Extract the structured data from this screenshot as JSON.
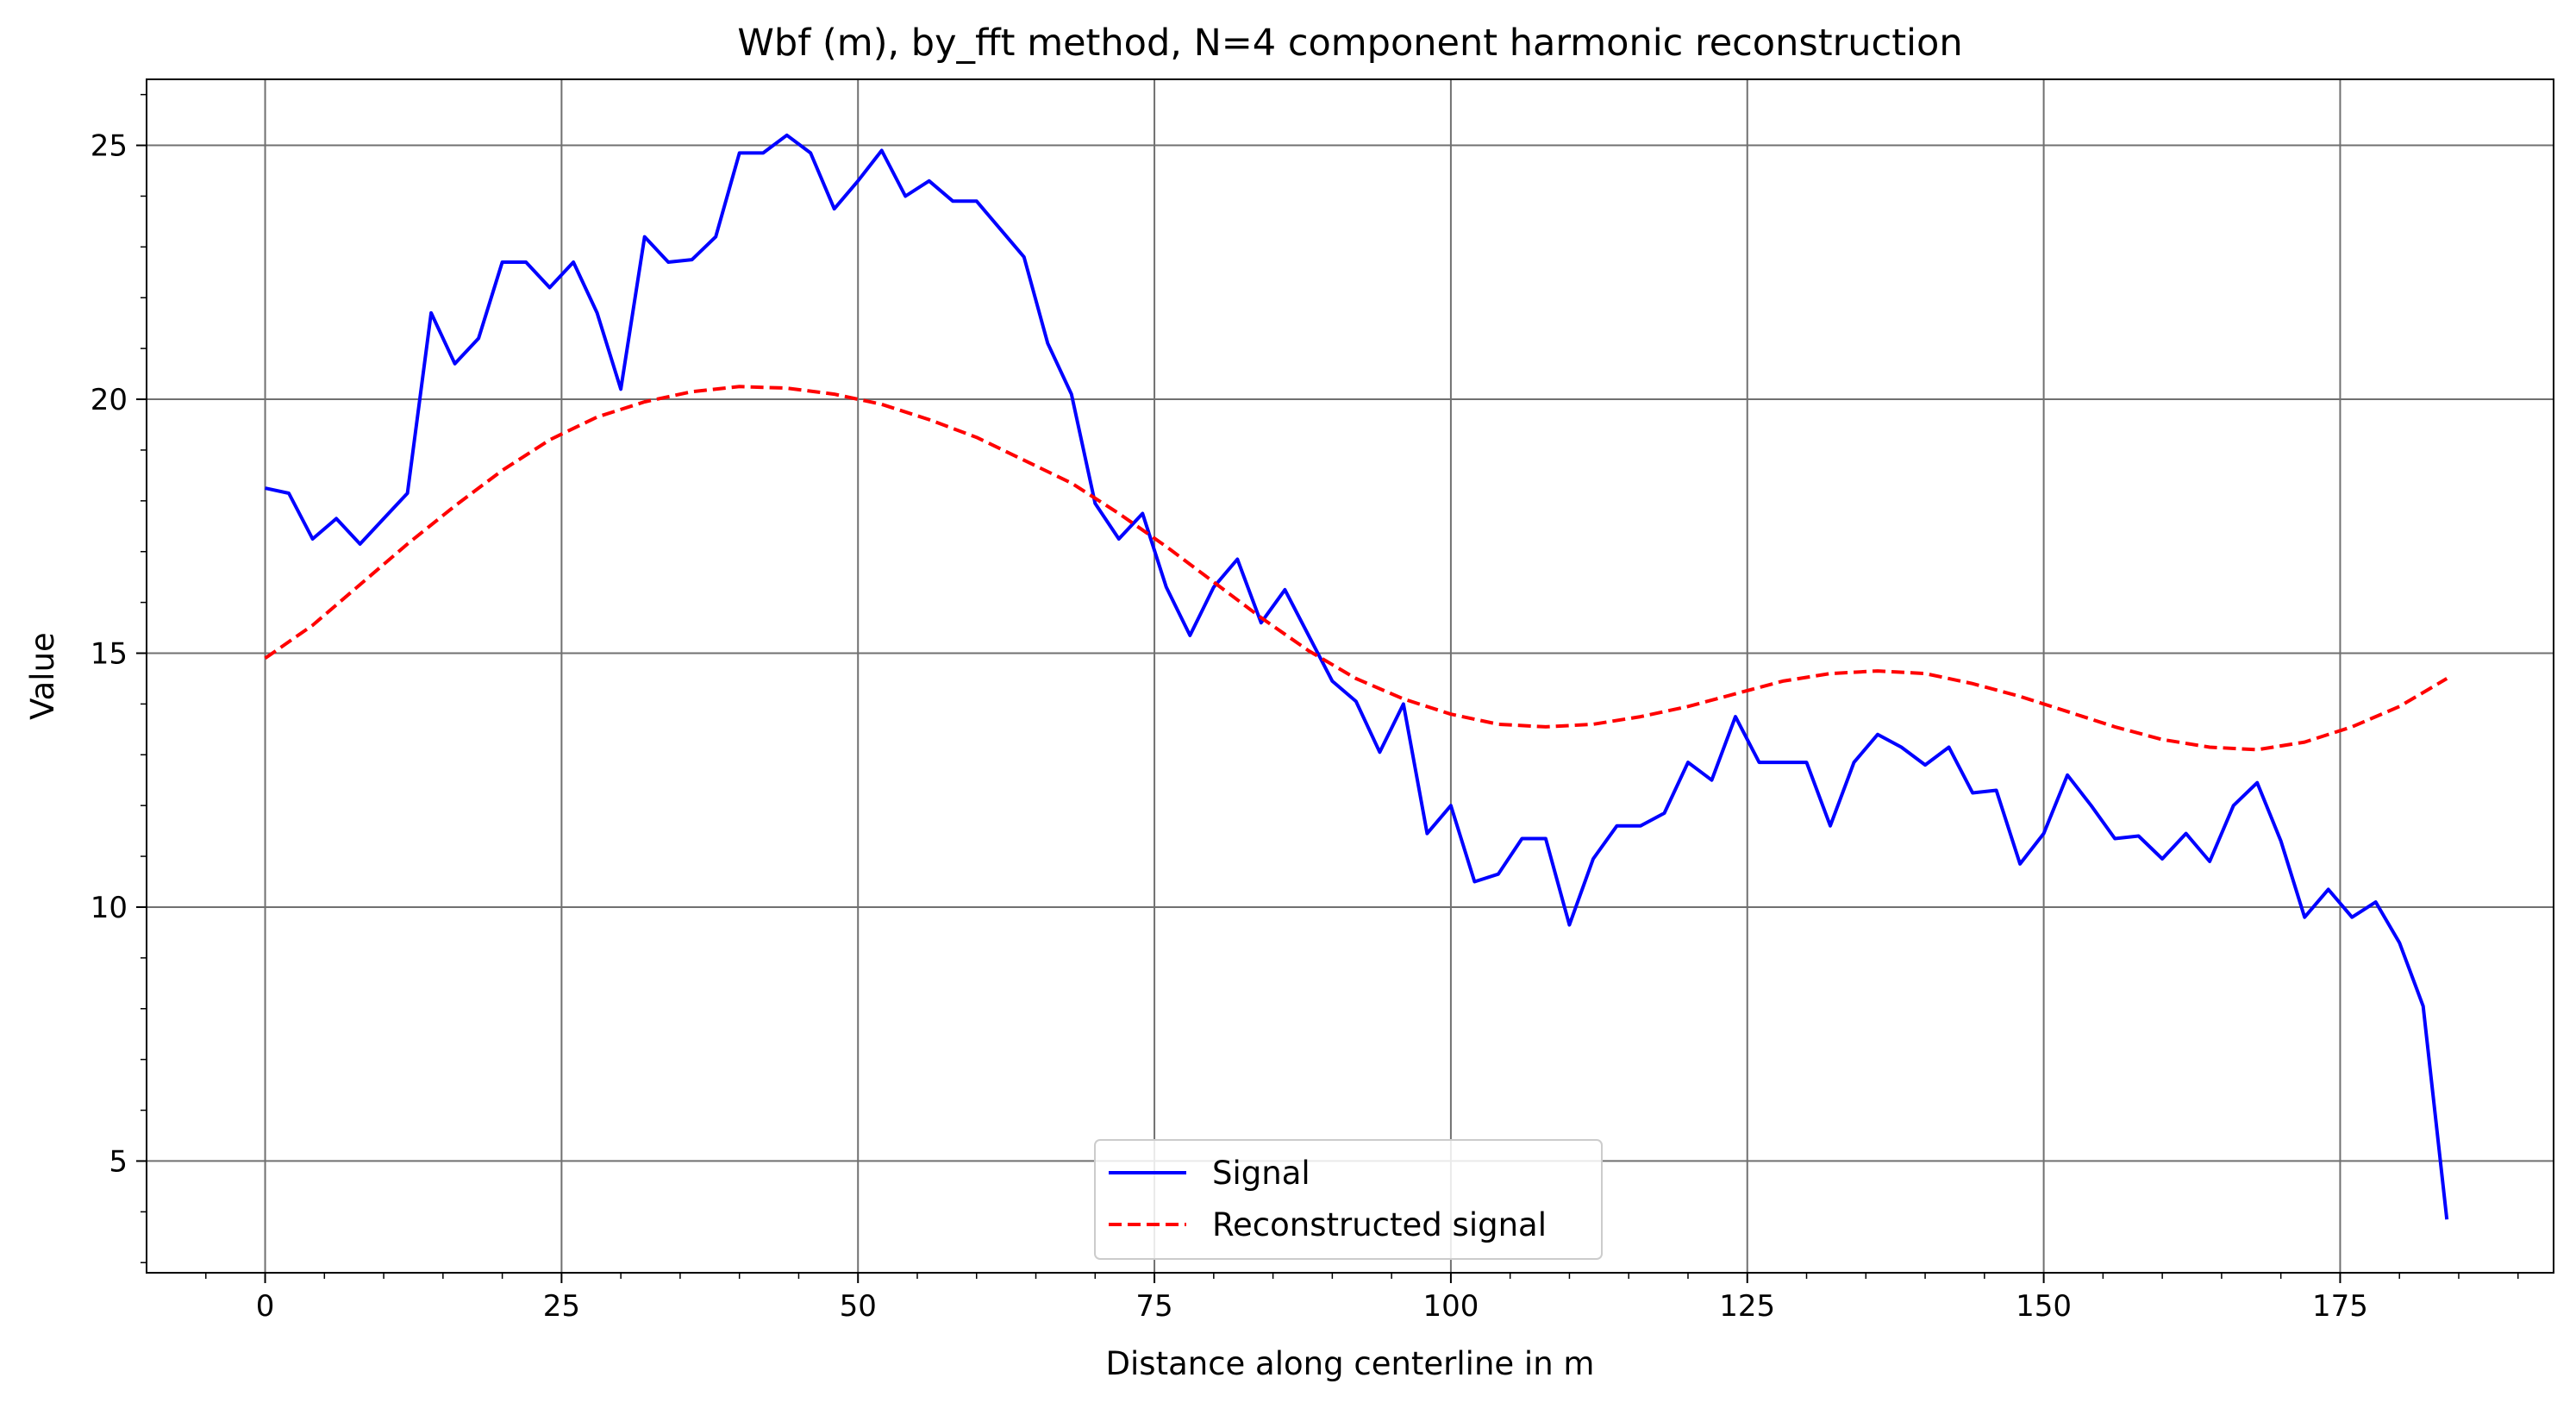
{
  "chart_data": {
    "type": "line",
    "title": "Wbf (m), by_fft method, N=4 component harmonic reconstruction",
    "xlabel": "Distance along centerline in m",
    "ylabel": "Value",
    "xlim": [
      -10,
      193
    ],
    "ylim": [
      2.8,
      26.3
    ],
    "xticks": [
      0,
      25,
      50,
      75,
      100,
      125,
      150,
      175
    ],
    "yticks": [
      5,
      10,
      15,
      20,
      25
    ],
    "grid": true,
    "legend_position": "bottom-center",
    "series": [
      {
        "name": "Signal",
        "color": "#0000ff",
        "style": "solid",
        "x": [
          0,
          2,
          4,
          6,
          8,
          10,
          12,
          14,
          16,
          18,
          20,
          22,
          24,
          26,
          28,
          30,
          32,
          34,
          36,
          38,
          40,
          42,
          44,
          46,
          48,
          50,
          52,
          54,
          56,
          58,
          60,
          62,
          64,
          66,
          68,
          70,
          72,
          74,
          76,
          78,
          80,
          82,
          84,
          86,
          88,
          90,
          92,
          94,
          96,
          98,
          100,
          102,
          104,
          106,
          108,
          110,
          112,
          114,
          116,
          118,
          120,
          122,
          124,
          126,
          128,
          130,
          132,
          134,
          136,
          138,
          140,
          142,
          144,
          146,
          148,
          150,
          152,
          154,
          156,
          158,
          160,
          162,
          164,
          166,
          168,
          170,
          172,
          174,
          176,
          178,
          180,
          182,
          184
        ],
        "y": [
          18.25,
          18.15,
          17.25,
          17.65,
          17.15,
          17.65,
          18.15,
          21.7,
          20.7,
          21.2,
          22.7,
          22.7,
          22.2,
          22.7,
          21.7,
          20.2,
          23.2,
          22.7,
          22.75,
          23.2,
          24.85,
          24.85,
          25.2,
          24.85,
          23.75,
          24.3,
          24.9,
          24.0,
          24.3,
          23.9,
          23.9,
          23.35,
          22.8,
          21.1,
          20.1,
          17.95,
          17.25,
          17.75,
          16.3,
          15.35,
          16.3,
          16.85,
          15.6,
          16.25,
          15.35,
          14.45,
          14.05,
          13.05,
          14.0,
          11.45,
          12.0,
          10.5,
          10.65,
          11.35,
          11.35,
          9.65,
          10.95,
          11.6,
          11.6,
          11.85,
          12.85,
          12.5,
          13.75,
          12.85,
          12.85,
          12.85,
          11.6,
          12.85,
          13.4,
          13.15,
          12.8,
          13.15,
          12.25,
          12.3,
          10.85,
          11.45,
          12.6,
          12.0,
          11.35,
          11.4,
          10.95,
          11.45,
          10.9,
          12.0,
          12.45,
          11.3,
          9.8,
          10.35,
          9.8,
          10.1,
          9.3,
          8.05,
          3.85
        ]
      },
      {
        "name": "Reconstructed signal",
        "color": "#ff0000",
        "style": "dashed",
        "x": [
          0,
          4,
          8,
          12,
          16,
          20,
          24,
          28,
          32,
          36,
          40,
          44,
          48,
          52,
          56,
          60,
          64,
          68,
          72,
          76,
          80,
          84,
          88,
          92,
          96,
          100,
          104,
          108,
          112,
          116,
          120,
          124,
          128,
          132,
          136,
          140,
          144,
          148,
          152,
          156,
          160,
          164,
          168,
          172,
          176,
          180,
          184
        ],
        "y": [
          14.9,
          15.55,
          16.35,
          17.15,
          17.9,
          18.6,
          19.2,
          19.65,
          19.95,
          20.15,
          20.25,
          20.22,
          20.1,
          19.9,
          19.6,
          19.25,
          18.8,
          18.35,
          17.75,
          17.1,
          16.4,
          15.7,
          15.05,
          14.5,
          14.1,
          13.8,
          13.6,
          13.55,
          13.6,
          13.75,
          13.95,
          14.2,
          14.45,
          14.6,
          14.65,
          14.6,
          14.4,
          14.15,
          13.85,
          13.55,
          13.3,
          13.15,
          13.1,
          13.25,
          13.55,
          13.95,
          14.5
        ]
      }
    ]
  }
}
